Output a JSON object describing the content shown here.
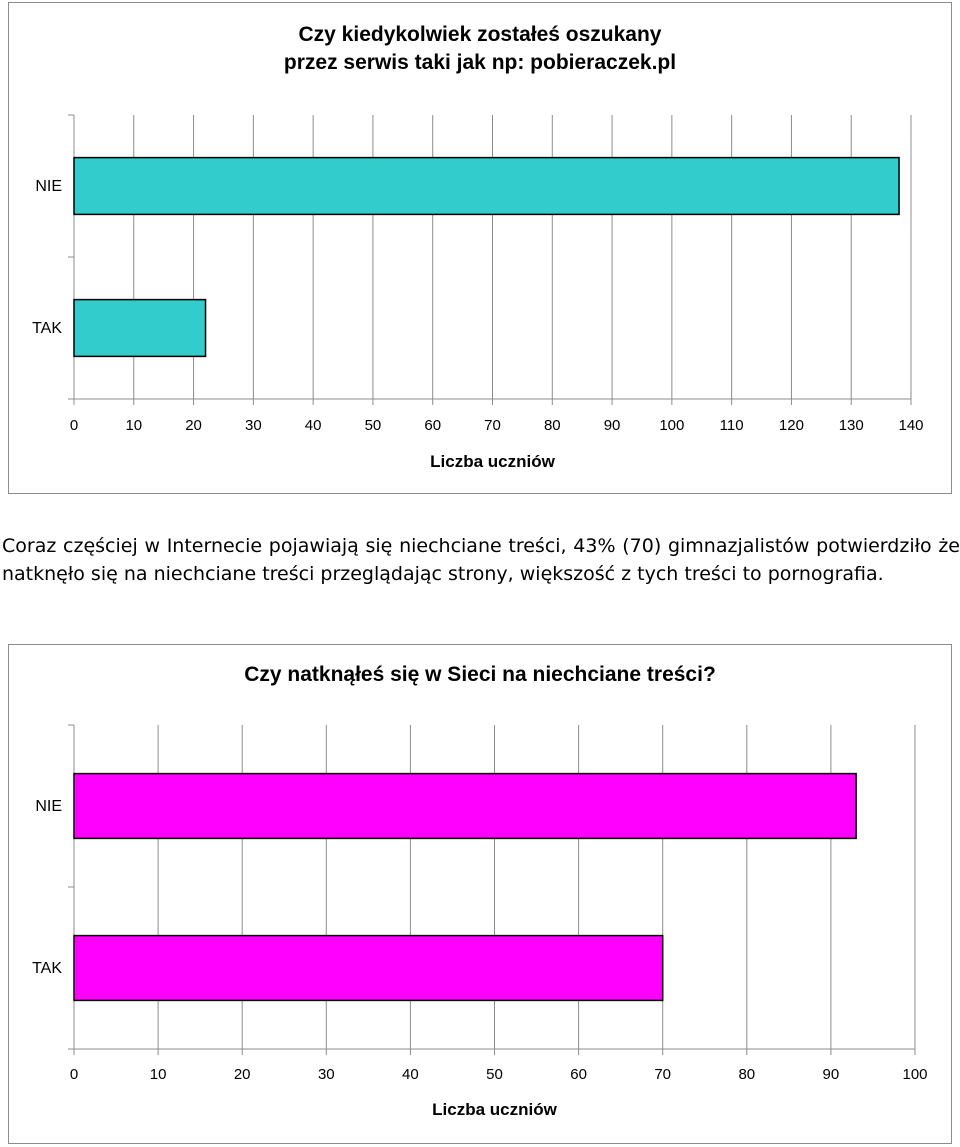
{
  "paragraph": "Coraz częściej w Internecie pojawiają się niechciane treści, 43% (70) gimnazjalistów potwierdziło że natknęło się na niechciane treści przeglądając strony, większość z tych treści to pornografia.",
  "chart_data": [
    {
      "type": "bar",
      "orientation": "horizontal",
      "title": [
        "Czy kiedykolwiek zostałeś oszukany",
        "przez serwis taki jak np: pobieraczek.pl"
      ],
      "xlabel": "Liczba uczniów",
      "ylabel": "",
      "categories": [
        "NIE",
        "TAK"
      ],
      "values": [
        138,
        22
      ],
      "xlim": [
        0,
        140
      ],
      "xticks": [
        "0",
        "10",
        "20",
        "30",
        "40",
        "50",
        "60",
        "70",
        "80",
        "90",
        "100",
        "110",
        "120",
        "130",
        "140"
      ],
      "grid": true,
      "bar_color": "#33CCCC",
      "legend": "none"
    },
    {
      "type": "bar",
      "orientation": "horizontal",
      "title": [
        "Czy natknąłeś się w Sieci na niechciane treści?"
      ],
      "xlabel": "Liczba uczniów",
      "ylabel": "",
      "categories": [
        "NIE",
        "TAK"
      ],
      "values": [
        93,
        70
      ],
      "xlim": [
        0,
        100
      ],
      "xticks": [
        "0",
        "10",
        "20",
        "30",
        "40",
        "50",
        "60",
        "70",
        "80",
        "90",
        "100"
      ],
      "grid": true,
      "bar_color": "#FF00FF",
      "legend": "none"
    }
  ]
}
